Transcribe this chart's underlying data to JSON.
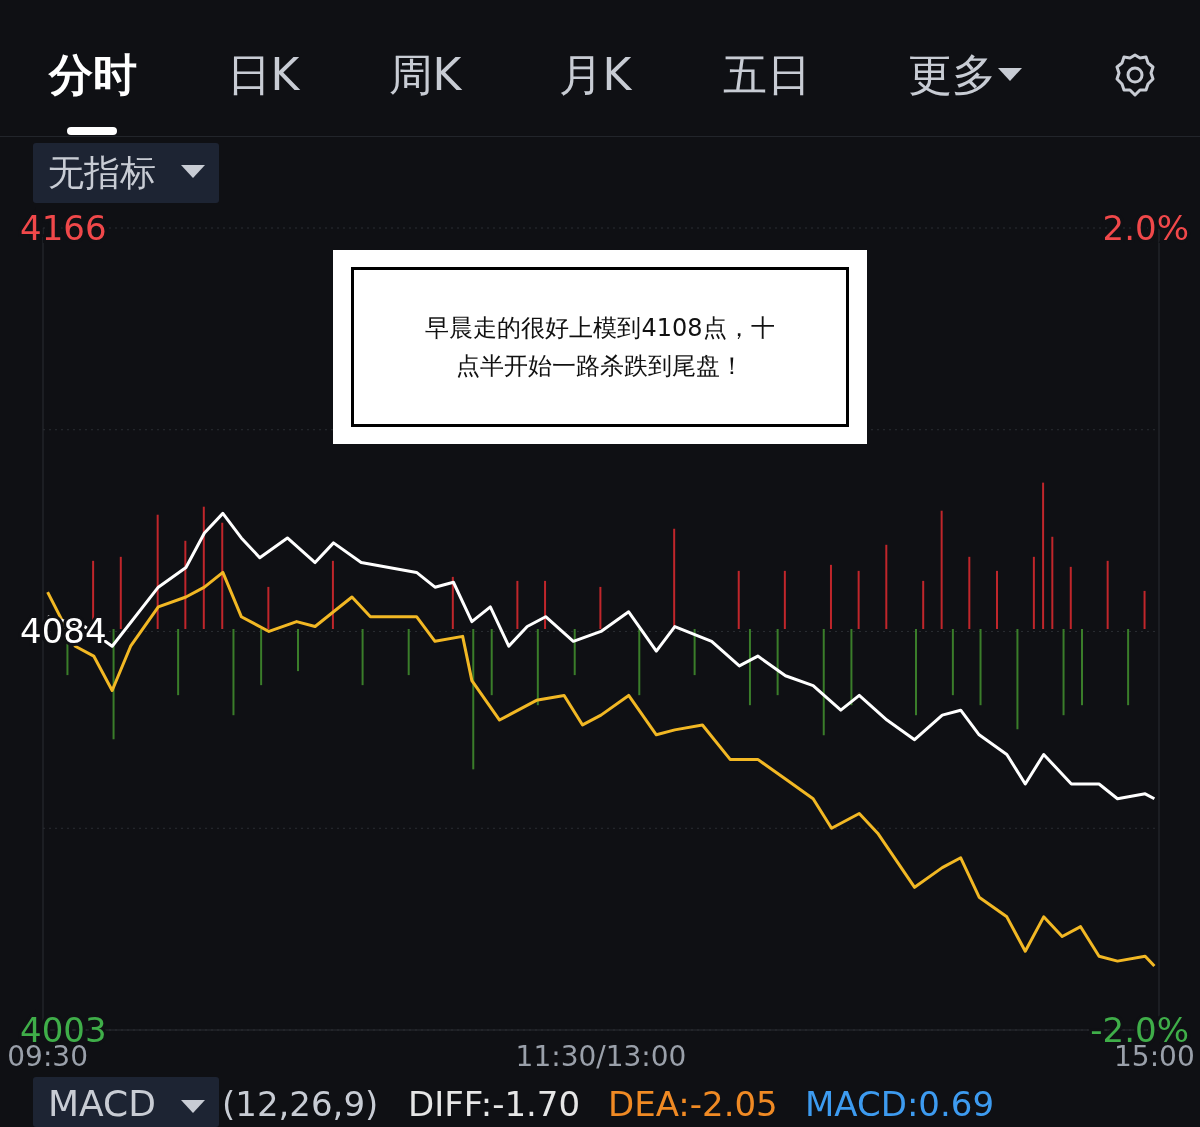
{
  "chart_data": {
    "type": "line",
    "categories": [
      "09:30",
      null,
      null,
      null,
      null,
      null,
      null,
      null,
      null,
      null,
      null,
      null,
      null,
      null,
      null,
      null,
      null,
      null,
      null,
      null,
      null,
      null,
      null,
      null,
      null,
      null,
      null,
      null,
      null,
      null,
      null,
      null,
      null,
      null,
      null,
      null,
      null,
      null,
      null,
      null,
      null,
      null,
      null,
      null,
      null,
      null,
      null,
      null,
      null,
      null,
      null,
      null,
      null,
      null,
      null,
      null,
      null,
      null,
      null,
      null,
      "11:30/13:00",
      null,
      null,
      null,
      null,
      null,
      null,
      null,
      null,
      null,
      null,
      null,
      null,
      null,
      null,
      null,
      null,
      null,
      null,
      null,
      null,
      null,
      null,
      null,
      null,
      null,
      null,
      null,
      null,
      null,
      null,
      null,
      null,
      null,
      null,
      null,
      null,
      null,
      null,
      null,
      null,
      null,
      null,
      null,
      null,
      null,
      null,
      null,
      null,
      null,
      null,
      null,
      null,
      null,
      null,
      null,
      null,
      null,
      null,
      null,
      "15:00"
    ],
    "ylim": [
      4003,
      4166
    ],
    "yticks": [
      {
        "value": 4003,
        "label": "4003"
      },
      {
        "value": 4044,
        "label": null
      },
      {
        "value": 4084,
        "label": "4084"
      },
      {
        "value": 4125,
        "label": null
      },
      {
        "value": 4166,
        "label": "4166"
      }
    ],
    "y2lim": [
      -2,
      2
    ],
    "y2ticks": [
      {
        "value": -2,
        "label": "-2.0%"
      },
      {
        "value": 2,
        "label": "2.0%"
      }
    ],
    "grid": "y",
    "series": [
      {
        "type": "bar",
        "axis": "y2",
        "color": "#c0262b",
        "values": [
          null,
          null,
          null,
          null,
          null,
          0.34,
          null,
          null,
          0.36,
          null,
          null,
          null,
          0.57,
          null,
          null,
          0.44,
          null,
          0.61,
          null,
          0.53,
          null,
          null,
          null,
          null,
          0.21,
          null,
          null,
          null,
          null,
          null,
          null,
          0.34,
          null,
          null,
          null,
          null,
          null,
          null,
          null,
          null,
          null,
          null,
          null,
          null,
          0.26,
          null,
          null,
          null,
          null,
          null,
          null,
          0.24,
          null,
          null,
          0.24,
          null,
          null,
          null,
          null,
          null,
          0.21,
          null,
          null,
          null,
          null,
          null,
          null,
          null,
          0.5,
          null,
          null,
          null,
          null,
          null,
          null,
          0.29,
          null,
          null,
          null,
          null,
          0.29,
          null,
          null,
          null,
          null,
          0.32,
          null,
          null,
          0.29,
          null,
          null,
          0.42,
          null,
          null,
          null,
          0.24,
          null,
          0.59,
          null,
          null,
          0.36,
          null,
          null,
          0.29,
          null,
          null,
          null,
          0.36,
          0.73,
          0.46,
          null,
          0.31,
          null,
          null,
          null,
          0.34,
          null,
          null,
          null,
          0.19,
          null
        ]
      },
      {
        "type": "bar",
        "axis": "y2",
        "color": "#3a7d2a",
        "values": [
          null,
          null,
          -0.23,
          null,
          null,
          null,
          null,
          -0.55,
          null,
          null,
          null,
          null,
          null,
          null,
          -0.33,
          null,
          null,
          null,
          null,
          null,
          -0.43,
          null,
          null,
          -0.28,
          null,
          null,
          null,
          -0.21,
          null,
          null,
          null,
          null,
          null,
          null,
          -0.28,
          null,
          null,
          null,
          null,
          -0.23,
          null,
          null,
          null,
          null,
          null,
          null,
          -0.7,
          null,
          -0.33,
          null,
          null,
          null,
          null,
          -0.38,
          null,
          null,
          null,
          -0.23,
          null,
          null,
          null,
          null,
          null,
          null,
          -0.33,
          null,
          null,
          null,
          null,
          null,
          -0.23,
          null,
          null,
          null,
          null,
          null,
          -0.38,
          null,
          null,
          -0.33,
          null,
          null,
          null,
          null,
          -0.53,
          null,
          null,
          -0.38,
          null,
          null,
          null,
          null,
          null,
          null,
          -0.43,
          null,
          null,
          null,
          -0.33,
          null,
          null,
          -0.38,
          null,
          null,
          null,
          -0.5,
          null,
          null,
          null,
          null,
          -0.43,
          null,
          -0.38,
          null,
          null,
          null,
          null,
          -0.38,
          null,
          null,
          null
        ]
      },
      {
        "color": "#f2b824",
        "values": [
          4092,
          null,
          null,
          4081,
          null,
          4079,
          null,
          4072,
          null,
          4081,
          null,
          null,
          4089,
          null,
          null,
          4091,
          null,
          4093,
          null,
          4096,
          null,
          4087,
          null,
          null,
          4084,
          null,
          null,
          4086,
          null,
          4085,
          null,
          null,
          null,
          4091,
          null,
          4087,
          null,
          null,
          null,
          null,
          4087,
          null,
          4082,
          null,
          null,
          4083,
          4074,
          null,
          null,
          4066,
          null,
          null,
          null,
          4070,
          null,
          null,
          4071,
          null,
          4065,
          null,
          4067,
          null,
          null,
          4071,
          null,
          null,
          4063,
          null,
          4064,
          null,
          null,
          4065,
          null,
          null,
          4058,
          null,
          null,
          4058,
          null,
          null,
          4054,
          null,
          null,
          4050,
          null,
          4044,
          null,
          null,
          4047,
          null,
          4043,
          null,
          null,
          null,
          4032,
          null,
          null,
          4036,
          null,
          4038,
          null,
          4030,
          null,
          null,
          4026,
          null,
          4019,
          null,
          4026,
          null,
          4022,
          null,
          4024,
          null,
          4018,
          null,
          4017,
          null,
          null,
          4018,
          4016
        ]
      },
      {
        "color": "#ffffff",
        "values": [
          4087,
          null,
          null,
          null,
          4085,
          null,
          null,
          4081,
          null,
          null,
          null,
          null,
          4093,
          null,
          null,
          4097,
          null,
          4104,
          null,
          4108,
          null,
          4103,
          null,
          4099,
          null,
          null,
          4103,
          null,
          null,
          4098,
          null,
          4102,
          null,
          null,
          4098,
          null,
          null,
          4097,
          null,
          null,
          4096,
          null,
          4093,
          null,
          4094,
          null,
          4086,
          null,
          4089,
          null,
          4081,
          null,
          4085,
          null,
          4087,
          null,
          null,
          4082,
          null,
          null,
          4084,
          null,
          null,
          4088,
          null,
          null,
          4080,
          null,
          4085,
          null,
          null,
          null,
          4082,
          null,
          null,
          4077,
          null,
          4079,
          null,
          null,
          4075,
          null,
          null,
          4073,
          null,
          null,
          4068,
          null,
          4071,
          null,
          null,
          4066,
          null,
          null,
          4062,
          null,
          null,
          4067,
          null,
          4068,
          null,
          4063,
          null,
          null,
          4059,
          null,
          4053,
          null,
          4059,
          null,
          null,
          4053,
          null,
          null,
          4053,
          null,
          4050,
          null,
          null,
          4051,
          4050
        ]
      }
    ],
    "annotations": [
      "分时",
      "日K",
      "周K",
      "月K",
      "五日",
      "更多",
      "无指标",
      "早晨走的很好上模到4108点，十点半开始一路杀跌到尾盘！",
      "MACD",
      "(12,26,9)",
      "DIFF:-1.70",
      "DEA:-2.05",
      "MACD:0.69"
    ]
  }
}
